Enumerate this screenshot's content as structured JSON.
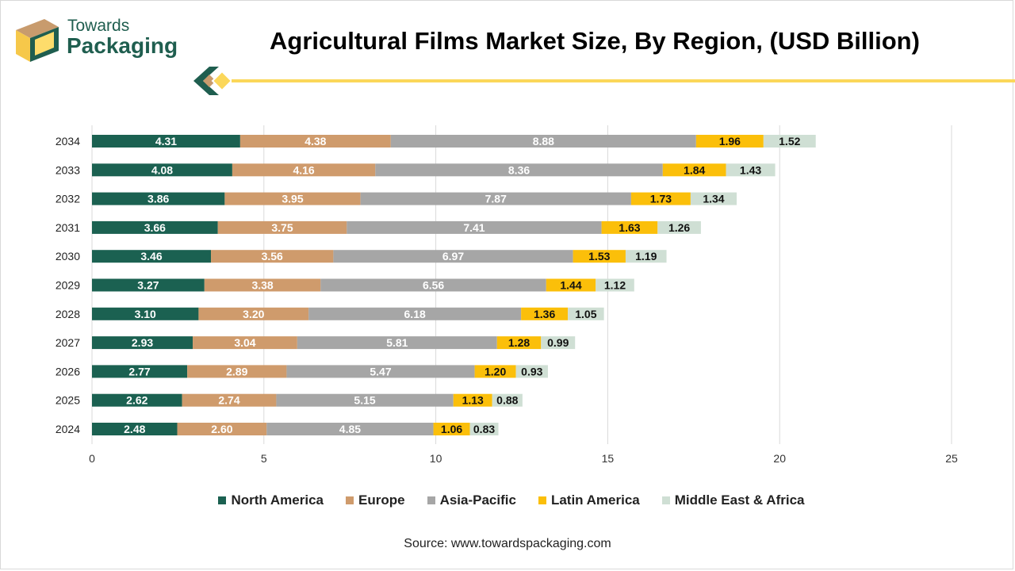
{
  "brand": {
    "line1": "Towards",
    "line2": "Packaging"
  },
  "colors": {
    "north_america": "#1b6151",
    "europe": "#cf9b6c",
    "asia_pacific": "#a6a6a6",
    "latin_america": "#fbbf0a",
    "middle_east_africa": "#cfdfd4",
    "accent_line": "#fbd75a"
  },
  "source": "Source: www.towardspackaging.com",
  "chart_data": {
    "type": "bar",
    "orientation": "horizontal",
    "stacked": true,
    "title": "Agricultural Films Market Size, By Region, (USD Billion)",
    "categories": [
      "2034",
      "2033",
      "2032",
      "2031",
      "2030",
      "2029",
      "2028",
      "2027",
      "2026",
      "2025",
      "2024"
    ],
    "series": [
      {
        "name": "North America",
        "color": "#1b6151",
        "label_color": "#ffffff",
        "values": [
          4.31,
          4.08,
          3.86,
          3.66,
          3.46,
          3.27,
          3.1,
          2.93,
          2.77,
          2.62,
          2.48
        ],
        "labels": [
          "4.31",
          "4.08",
          "3.86",
          "3.66",
          "3.46",
          "3.27",
          "3.10",
          "2.93",
          "2.77",
          "2.62",
          "2.48"
        ]
      },
      {
        "name": "Europe",
        "color": "#cf9b6c",
        "label_color": "#ffffff",
        "values": [
          4.38,
          4.16,
          3.95,
          3.75,
          3.56,
          3.38,
          3.2,
          3.04,
          2.89,
          2.74,
          2.6
        ],
        "labels": [
          "4.38",
          "4.16",
          "3.95",
          "3.75",
          "3.56",
          "3.38",
          "3.20",
          "3.04",
          "2.89",
          "2.74",
          "2.60"
        ]
      },
      {
        "name": "Asia-Pacific",
        "color": "#a6a6a6",
        "label_color": "#ffffff",
        "values": [
          8.88,
          8.36,
          7.87,
          7.41,
          6.97,
          6.56,
          6.18,
          5.81,
          5.47,
          5.15,
          4.85
        ],
        "labels": [
          "8.88",
          "8.36",
          "7.87",
          "7.41",
          "6.97",
          "6.56",
          "6.18",
          "5.81",
          "5.47",
          "5.15",
          "4.85"
        ]
      },
      {
        "name": "Latin America",
        "color": "#fbbf0a",
        "label_color": "#111111",
        "values": [
          1.96,
          1.84,
          1.73,
          1.63,
          1.53,
          1.44,
          1.36,
          1.28,
          1.2,
          1.13,
          1.06
        ],
        "labels": [
          "1.96",
          "1.84",
          "1.73",
          "1.63",
          "1.53",
          "1.44",
          "1.36",
          "1.28",
          "1.20",
          "1.13",
          "1.06"
        ]
      },
      {
        "name": "Middle East & Africa",
        "color": "#cfdfd4",
        "label_color": "#111111",
        "values": [
          1.52,
          1.43,
          1.34,
          1.26,
          1.19,
          1.12,
          1.05,
          0.99,
          0.93,
          0.88,
          0.83
        ],
        "labels": [
          "1.52",
          "1.43",
          "1.34",
          "1.26",
          "1.19",
          "1.12",
          "1.05",
          "0.99",
          "0.93",
          "0.88",
          "0.83"
        ]
      }
    ],
    "xlim": [
      0,
      25
    ],
    "xticks": [
      0,
      5,
      10,
      15,
      20,
      25
    ],
    "xtick_labels": [
      "0",
      "5",
      "10",
      "15",
      "20",
      "25"
    ],
    "grid": "vertical",
    "legend_position": "bottom"
  }
}
